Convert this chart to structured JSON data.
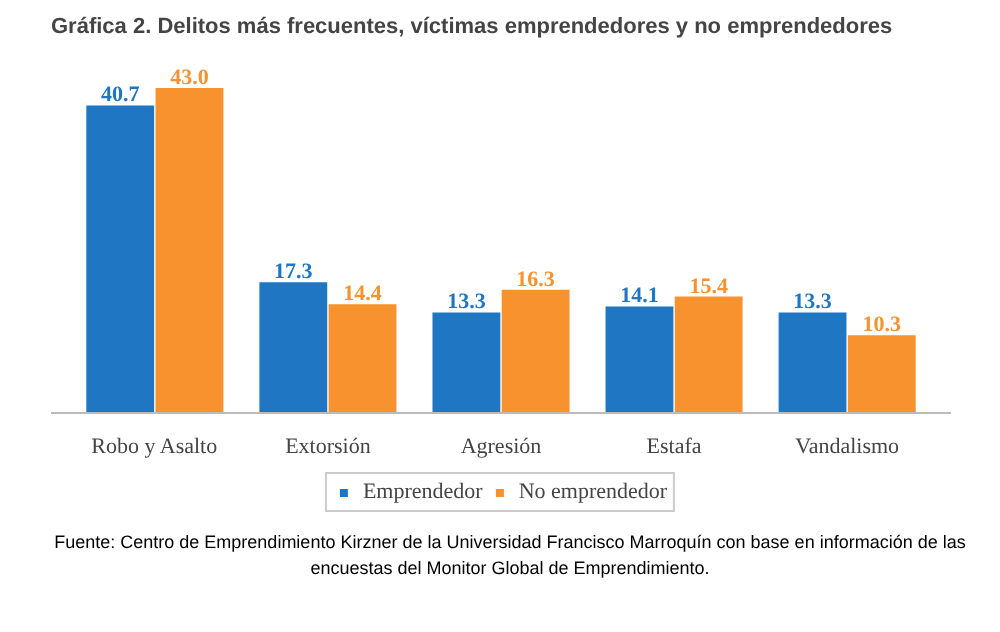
{
  "chart_data": {
    "type": "bar",
    "title": "Gráfica 2. Delitos más frecuentes, víctimas emprendedores y no emprendedores",
    "categories": [
      "Robo y Asalto",
      "Extorsión",
      "Agresión",
      "Estafa",
      "Vandalismo"
    ],
    "series": [
      {
        "name": "Emprendedor",
        "color": "#1f77c4",
        "values": [
          40.7,
          17.3,
          13.3,
          14.1,
          13.3
        ],
        "value_labels": [
          "40.7",
          "17.3",
          "13.3",
          "14.1",
          "13.3"
        ]
      },
      {
        "name": "No emprendedor",
        "color": "#f7922f",
        "values": [
          43.0,
          14.4,
          16.3,
          15.4,
          10.3
        ],
        "value_labels": [
          "43.0",
          "14.4",
          "16.3",
          "15.4",
          "10.3"
        ]
      }
    ],
    "tick_labels": "x",
    "grid": false,
    "legend": "bottom",
    "annotations": [
      "Fuente: Centro de Emprendimiento Kirzner de la Universidad Francisco Marroquín con base en información de las",
      "encuestas del Monitor Global de Emprendimiento."
    ]
  }
}
